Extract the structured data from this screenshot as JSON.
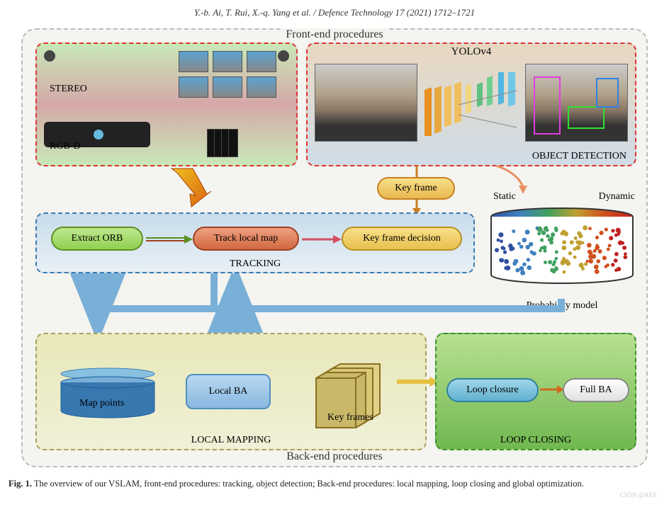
{
  "header": {
    "citation": "Y.-b. Ai, T. Rui, X.-q. Yang et al. / Defence Technology 17 (2021) 1712–1721"
  },
  "outer": {
    "top_title": "Front-end procedures",
    "bottom_title": "Back-end procedures"
  },
  "cam_box": {
    "stereo": "STEREO",
    "rgbd": "RGB-D",
    "border_color": "#d33"
  },
  "yolo_box": {
    "title": "YOLOv4",
    "label": "OBJECT DETECTION",
    "border_color": "#d33",
    "layer_colors": [
      "#e89020",
      "#e8a840",
      "#f0c060",
      "#60c080",
      "#50b8e0"
    ]
  },
  "keyframe": {
    "label": "Key frame",
    "fill": [
      "#f8e088",
      "#e8b850"
    ],
    "border": "#c88020"
  },
  "tracking": {
    "label": "TRACKING",
    "border_color": "#3a7ab0",
    "boxes": [
      {
        "label": "Extract ORB",
        "fill": [
          "#c0e890",
          "#90d050"
        ],
        "border": "#5a9020"
      },
      {
        "label": "Track local map",
        "fill": [
          "#f0a080",
          "#d06840"
        ],
        "border": "#a04020"
      },
      {
        "label": "Key frame decision",
        "fill": [
          "#f8e088",
          "#e8c050"
        ],
        "border": "#b89020"
      }
    ],
    "arrows": [
      {
        "from": "extract",
        "to": "track",
        "color": "#5a9020"
      },
      {
        "from": "track",
        "to": "kfd",
        "color": "#d05060"
      }
    ]
  },
  "prob": {
    "static": "Static",
    "dynamic": "Dynamic",
    "label": "Probability model",
    "spectrum": [
      "#3050a0",
      "#4080c0",
      "#40a060",
      "#c0a030",
      "#d05020",
      "#c02020"
    ]
  },
  "localmap": {
    "label": "LOCAL MAPPING",
    "map_points": "Map points",
    "local_ba": "Local BA",
    "key_frames": "Key frames",
    "border_color": "#a8a060"
  },
  "loopclose": {
    "label": "LOOP CLOSING",
    "loop": "Loop closure",
    "full": "Full BA",
    "border_color": "#3a9030",
    "arrow_color": "#d06820"
  },
  "connectors": {
    "blue_arrow_color": "#7ab0d8",
    "yellow_arrow_color": "#e8c040",
    "orange_arrow_color": "#e89060"
  },
  "caption": {
    "fig": "Fig. 1.",
    "text": "The overview of our VSLAM, front-end procedures: tracking, object detection; Back-end procedures: local mapping, loop closing and global optimization."
  },
  "watermark": "CSDN @AES"
}
